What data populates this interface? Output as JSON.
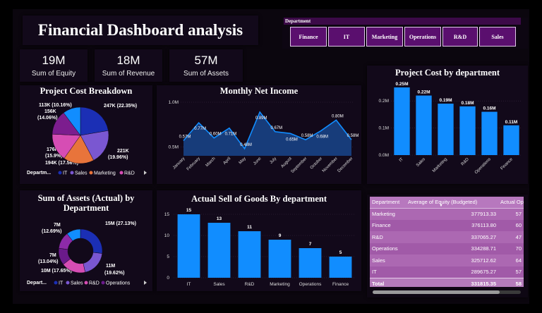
{
  "header": {
    "title": "Financial Dashboard analysis"
  },
  "slicer": {
    "label": "Department",
    "buttons": [
      "Finance",
      "IT",
      "Marketing",
      "Operations",
      "R&D",
      "Sales"
    ]
  },
  "kpis": [
    {
      "value": "19M",
      "label": "Sum of Equity"
    },
    {
      "value": "18M",
      "label": "Sum of Revenue"
    },
    {
      "value": "57M",
      "label": "Sum of Assets"
    }
  ],
  "pie": {
    "title": "Project Cost Breakdown",
    "legend_title": "Departm...",
    "legend": [
      {
        "name": "IT",
        "color": "#1b2fb5"
      },
      {
        "name": "Sales",
        "color": "#7a57d1"
      },
      {
        "name": "Marketing",
        "color": "#e8743b"
      },
      {
        "name": "R&D",
        "color": "#d64db4"
      }
    ],
    "labels": [
      "247K (22.35%)",
      "221K",
      "(19.96%)",
      "194K (17.56%)",
      "176K",
      "(15.9%)",
      "156K",
      "(14.06%)",
      "113K (10.16%)"
    ]
  },
  "donut": {
    "title_line1": "Sum of Assets (Actual) by",
    "title_line2": "Department",
    "legend_title": "Depart...",
    "legend": [
      {
        "name": "IT",
        "color": "#1b2fb5"
      },
      {
        "name": "Sales",
        "color": "#7a57d1"
      },
      {
        "name": "R&D",
        "color": "#d64db4"
      },
      {
        "name": "Operations",
        "color": "#6a1a8a"
      }
    ],
    "labels": [
      "15M (27.13%)",
      "11M",
      "(19.62%)",
      "10M (17.65%)",
      "7M",
      "(13.04%)",
      "7M",
      "(12.69%)"
    ]
  },
  "table": {
    "headers": [
      "Department",
      "Average of Equity (Budgeted)",
      "Actual Operating c"
    ],
    "rows": [
      [
        "Marketing",
        "377913.33",
        "57"
      ],
      [
        "Finance",
        "376113.80",
        "60"
      ],
      [
        "R&D",
        "337065.27",
        "47"
      ],
      [
        "Operations",
        "334288.71",
        "70"
      ],
      [
        "Sales",
        "325712.62",
        "64"
      ],
      [
        "IT",
        "289675.27",
        "57"
      ]
    ],
    "total": [
      "Total",
      "331815.35",
      "58"
    ]
  },
  "chart_data": [
    {
      "type": "pie",
      "title": "Project Cost Breakdown",
      "categories": [
        "IT",
        "Sales",
        "Marketing",
        "R&D",
        "Operations",
        "Finance"
      ],
      "values": [
        247,
        221,
        194,
        176,
        156,
        113
      ],
      "colors": [
        "#1b2fb5",
        "#7a57d1",
        "#e8743b",
        "#d64db4",
        "#7c1d8e",
        "#118dff"
      ],
      "legend": "bottom"
    },
    {
      "type": "area",
      "title": "Monthly Net Income",
      "categories": [
        "January",
        "February",
        "March",
        "April",
        "May",
        "June",
        "July",
        "August",
        "September",
        "October",
        "November",
        "December"
      ],
      "values": [
        0.57,
        0.77,
        0.6,
        0.71,
        0.48,
        0.89,
        0.67,
        0.65,
        0.58,
        0.68,
        0.8,
        0.58
      ],
      "data_labels": [
        "0.57M",
        "0.77M",
        "0.60M",
        "0.71M",
        "0.48M",
        "0.89M",
        "0.67M",
        "0.65M",
        "0.58M",
        "0.68M",
        "0.80M",
        "0.58M"
      ],
      "yticks": [
        "0.5M",
        "1.0M"
      ],
      "ylim": [
        0.4,
        1.0
      ],
      "grid": true
    },
    {
      "type": "bar",
      "title": "Project Cost by department",
      "categories": [
        "IT",
        "Sales",
        "Marketing",
        "R&D",
        "Operations",
        "Finance"
      ],
      "values": [
        0.25,
        0.22,
        0.19,
        0.18,
        0.16,
        0.11
      ],
      "data_labels": [
        "0.25M",
        "0.22M",
        "0.19M",
        "0.18M",
        "0.16M",
        "0.11M"
      ],
      "yticks": [
        "0.0M",
        "0.1M",
        "0.2M"
      ],
      "ylim": [
        0,
        0.25
      ],
      "grid": true
    },
    {
      "type": "pie",
      "title": "Sum of Assets (Actual) by Department",
      "categories": [
        "IT",
        "Sales",
        "R&D",
        "Operations",
        "Marketing",
        "Finance"
      ],
      "values": [
        15,
        11,
        10,
        7,
        7,
        5.87
      ],
      "colors": [
        "#1b2fb5",
        "#7a57d1",
        "#d64db4",
        "#6a1a8a",
        "#8d2aa8",
        "#118dff"
      ],
      "legend": "bottom"
    },
    {
      "type": "bar",
      "title": "Actual Sell of Goods By department",
      "categories": [
        "IT",
        "Sales",
        "R&D",
        "Marketing",
        "Operations",
        "Finance"
      ],
      "values": [
        15,
        13,
        11,
        9,
        7,
        5
      ],
      "data_labels": [
        "15",
        "13",
        "11",
        "9",
        "7",
        "5"
      ],
      "yticks": [
        "0",
        "5",
        "10",
        "15"
      ],
      "ylim": [
        0,
        16
      ],
      "grid": true
    }
  ]
}
